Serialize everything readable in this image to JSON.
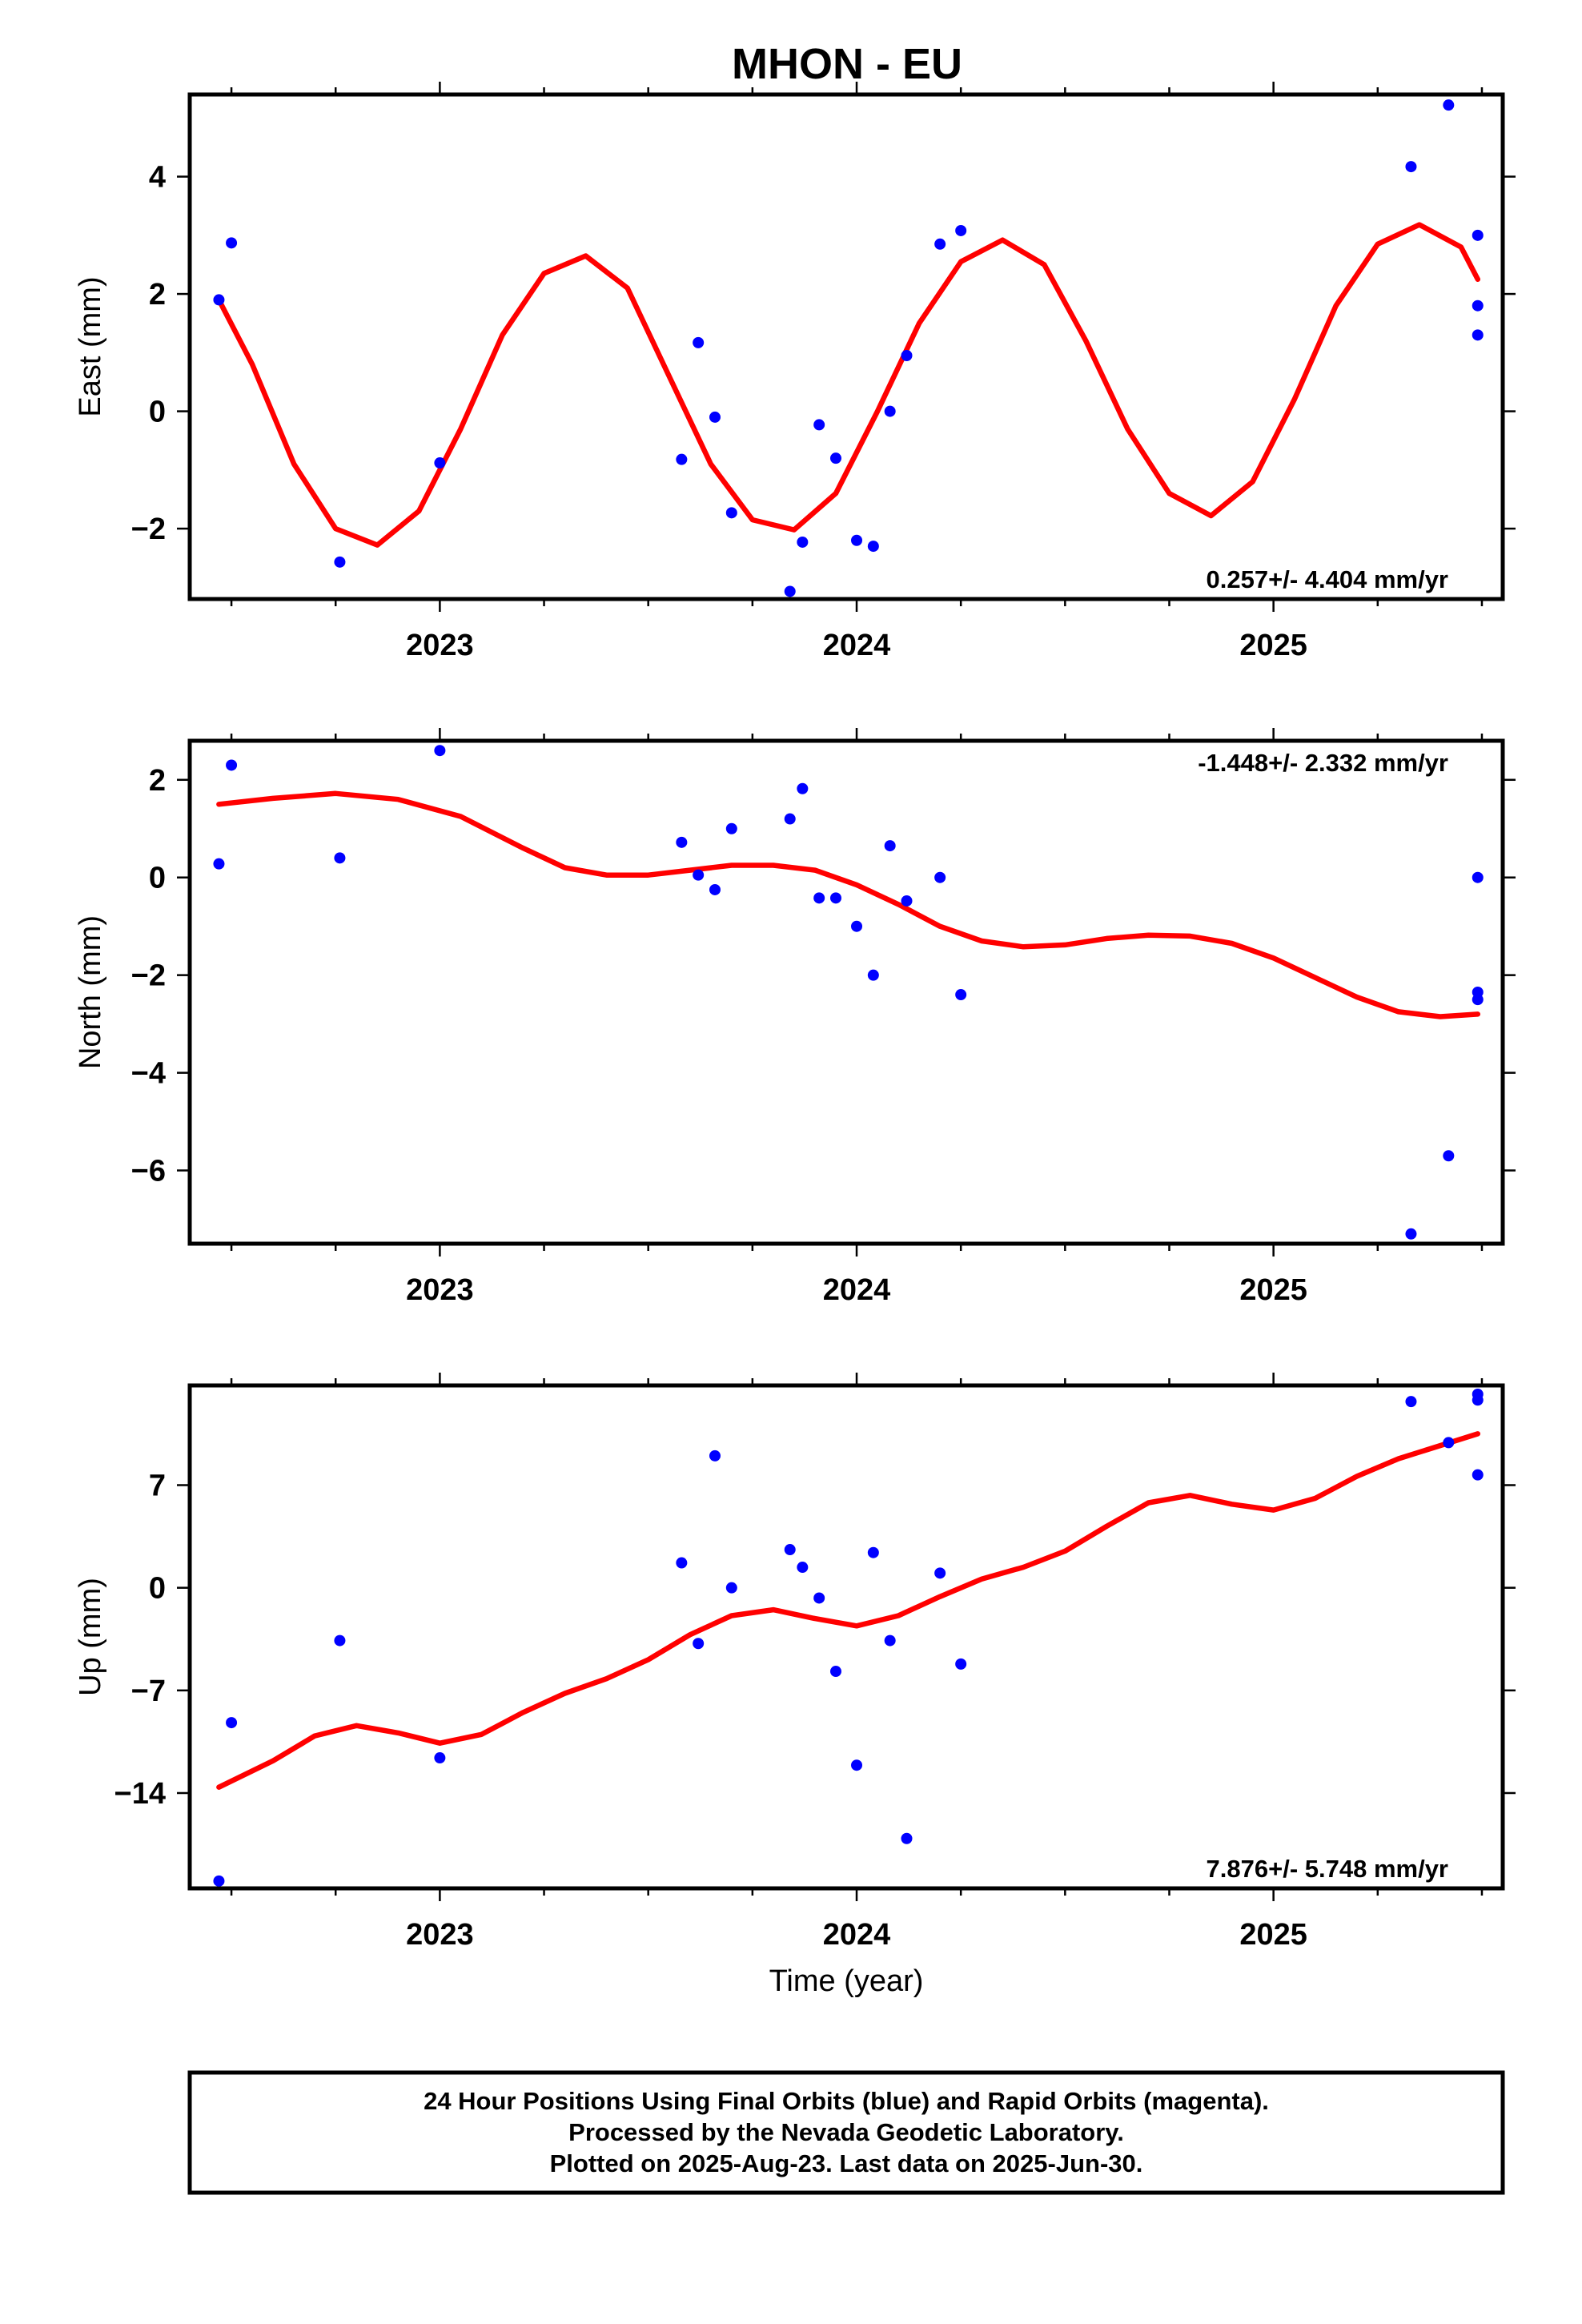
{
  "chart_data": [
    {
      "type": "scatter",
      "title": "MHON - EU",
      "xlabel": "",
      "ylabel": "East (mm)",
      "xlim": [
        2022.4,
        2025.55
      ],
      "ylim": [
        -3.2,
        5.4
      ],
      "xticks": [
        2023,
        2024,
        2025
      ],
      "xtick_labels": [
        "2023",
        "2024",
        "2025"
      ],
      "yticks": [
        -2,
        0,
        2,
        4
      ],
      "ytick_labels": [
        "−2",
        "0",
        "2",
        "4"
      ],
      "rate_label": "0.257+/- 4.404 mm/yr",
      "series": [
        {
          "points": [
            [
              2022.47,
              1.9
            ],
            [
              2022.5,
              2.87
            ],
            [
              2022.76,
              -2.57
            ],
            [
              2023.0,
              -0.88
            ],
            [
              2023.58,
              -0.82
            ],
            [
              2023.62,
              1.17
            ],
            [
              2023.66,
              -0.1
            ],
            [
              2023.7,
              -1.73
            ],
            [
              2023.84,
              -3.07
            ],
            [
              2023.87,
              -2.23
            ],
            [
              2023.91,
              -0.23
            ],
            [
              2023.95,
              -0.8
            ],
            [
              2024.0,
              -2.2
            ],
            [
              2024.04,
              -2.3
            ],
            [
              2024.08,
              0.0
            ],
            [
              2024.12,
              0.95
            ],
            [
              2024.2,
              2.85
            ],
            [
              2024.25,
              3.08
            ],
            [
              2025.33,
              4.17
            ],
            [
              2025.42,
              5.22
            ],
            [
              2025.49,
              3.0
            ],
            [
              2025.49,
              1.8
            ],
            [
              2025.49,
              1.3
            ]
          ]
        },
        {
          "fit": [
            [
              2022.47,
              1.9
            ],
            [
              2022.55,
              0.8
            ],
            [
              2022.65,
              -0.9
            ],
            [
              2022.75,
              -2.0
            ],
            [
              2022.85,
              -2.28
            ],
            [
              2022.95,
              -1.7
            ],
            [
              2023.05,
              -0.3
            ],
            [
              2023.15,
              1.3
            ],
            [
              2023.25,
              2.35
            ],
            [
              2023.35,
              2.65
            ],
            [
              2023.45,
              2.1
            ],
            [
              2023.55,
              0.6
            ],
            [
              2023.65,
              -0.9
            ],
            [
              2023.75,
              -1.85
            ],
            [
              2023.85,
              -2.02
            ],
            [
              2023.95,
              -1.4
            ],
            [
              2024.05,
              0.0
            ],
            [
              2024.15,
              1.5
            ],
            [
              2024.25,
              2.55
            ],
            [
              2024.35,
              2.92
            ],
            [
              2024.45,
              2.5
            ],
            [
              2024.55,
              1.2
            ],
            [
              2024.65,
              -0.3
            ],
            [
              2024.75,
              -1.4
            ],
            [
              2024.85,
              -1.78
            ],
            [
              2024.95,
              -1.2
            ],
            [
              2025.05,
              0.2
            ],
            [
              2025.15,
              1.8
            ],
            [
              2025.25,
              2.85
            ],
            [
              2025.35,
              3.18
            ],
            [
              2025.45,
              2.8
            ],
            [
              2025.49,
              2.25
            ]
          ]
        }
      ]
    },
    {
      "type": "scatter",
      "title": "",
      "xlabel": "",
      "ylabel": "North (mm)",
      "xlim": [
        2022.4,
        2025.55
      ],
      "ylim": [
        -7.5,
        2.8
      ],
      "xticks": [
        2023,
        2024,
        2025
      ],
      "xtick_labels": [
        "2023",
        "2024",
        "2025"
      ],
      "yticks": [
        -6,
        -4,
        -2,
        0,
        2
      ],
      "ytick_labels": [
        "−6",
        "−4",
        "−2",
        "0",
        "2"
      ],
      "rate_label": "-1.448+/- 2.332 mm/yr",
      "series": [
        {
          "points": [
            [
              2022.47,
              0.28
            ],
            [
              2022.5,
              2.3
            ],
            [
              2022.76,
              0.4
            ],
            [
              2023.0,
              2.6
            ],
            [
              2023.58,
              0.72
            ],
            [
              2023.62,
              0.05
            ],
            [
              2023.66,
              -0.25
            ],
            [
              2023.7,
              1.0
            ],
            [
              2023.84,
              1.2
            ],
            [
              2023.87,
              1.82
            ],
            [
              2023.91,
              -0.42
            ],
            [
              2023.95,
              -0.42
            ],
            [
              2024.0,
              -1.0
            ],
            [
              2024.04,
              -2.0
            ],
            [
              2024.08,
              0.65
            ],
            [
              2024.12,
              -0.48
            ],
            [
              2024.2,
              0.0
            ],
            [
              2024.25,
              -2.4
            ],
            [
              2025.33,
              -7.3
            ],
            [
              2025.42,
              -5.7
            ],
            [
              2025.49,
              -2.35
            ],
            [
              2025.49,
              -2.5
            ],
            [
              2025.49,
              0.0
            ]
          ]
        },
        {
          "fit": [
            [
              2022.47,
              1.5
            ],
            [
              2022.6,
              1.62
            ],
            [
              2022.75,
              1.72
            ],
            [
              2022.9,
              1.6
            ],
            [
              2023.05,
              1.25
            ],
            [
              2023.2,
              0.6
            ],
            [
              2023.3,
              0.2
            ],
            [
              2023.4,
              0.05
            ],
            [
              2023.5,
              0.05
            ],
            [
              2023.6,
              0.15
            ],
            [
              2023.7,
              0.25
            ],
            [
              2023.8,
              0.25
            ],
            [
              2023.9,
              0.15
            ],
            [
              2024.0,
              -0.15
            ],
            [
              2024.1,
              -0.55
            ],
            [
              2024.2,
              -1.0
            ],
            [
              2024.3,
              -1.3
            ],
            [
              2024.4,
              -1.42
            ],
            [
              2024.5,
              -1.38
            ],
            [
              2024.6,
              -1.25
            ],
            [
              2024.7,
              -1.18
            ],
            [
              2024.8,
              -1.2
            ],
            [
              2024.9,
              -1.35
            ],
            [
              2025.0,
              -1.65
            ],
            [
              2025.1,
              -2.05
            ],
            [
              2025.2,
              -2.45
            ],
            [
              2025.3,
              -2.75
            ],
            [
              2025.4,
              -2.85
            ],
            [
              2025.49,
              -2.8
            ]
          ]
        }
      ]
    },
    {
      "type": "scatter",
      "title": "",
      "xlabel": "Time (year)",
      "ylabel": "Up (mm)",
      "xlim": [
        2022.4,
        2025.55
      ],
      "ylim": [
        -20.5,
        13.8
      ],
      "xticks": [
        2023,
        2024,
        2025
      ],
      "xtick_labels": [
        "2023",
        "2024",
        "2025"
      ],
      "yticks": [
        -14,
        -7,
        0,
        7
      ],
      "ytick_labels": [
        "−14",
        "−7",
        "0",
        "7"
      ],
      "rate_label": "7.876+/- 5.748 mm/yr",
      "series": [
        {
          "points": [
            [
              2022.47,
              -20.0
            ],
            [
              2022.5,
              -9.2
            ],
            [
              2022.76,
              -3.6
            ],
            [
              2023.0,
              -11.6
            ],
            [
              2023.58,
              1.7
            ],
            [
              2023.62,
              -3.8
            ],
            [
              2023.66,
              9.0
            ],
            [
              2023.7,
              0.0
            ],
            [
              2023.84,
              2.6
            ],
            [
              2023.87,
              1.4
            ],
            [
              2023.91,
              -0.7
            ],
            [
              2023.95,
              -5.7
            ],
            [
              2024.0,
              -12.1
            ],
            [
              2024.04,
              2.4
            ],
            [
              2024.08,
              -3.6
            ],
            [
              2024.12,
              -17.1
            ],
            [
              2024.2,
              1.0
            ],
            [
              2024.25,
              -5.2
            ],
            [
              2025.33,
              12.7
            ],
            [
              2025.42,
              9.9
            ],
            [
              2025.49,
              12.8
            ],
            [
              2025.49,
              13.2
            ],
            [
              2025.49,
              7.7
            ]
          ]
        },
        {
          "fit": [
            [
              2022.47,
              -13.6
            ],
            [
              2022.6,
              -11.8
            ],
            [
              2022.7,
              -10.1
            ],
            [
              2022.8,
              -9.4
            ],
            [
              2022.9,
              -9.9
            ],
            [
              2023.0,
              -10.6
            ],
            [
              2023.1,
              -10.0
            ],
            [
              2023.2,
              -8.5
            ],
            [
              2023.3,
              -7.2
            ],
            [
              2023.4,
              -6.2
            ],
            [
              2023.5,
              -4.9
            ],
            [
              2023.6,
              -3.2
            ],
            [
              2023.7,
              -1.9
            ],
            [
              2023.8,
              -1.5
            ],
            [
              2023.9,
              -2.1
            ],
            [
              2024.0,
              -2.6
            ],
            [
              2024.1,
              -1.9
            ],
            [
              2024.2,
              -0.6
            ],
            [
              2024.3,
              0.6
            ],
            [
              2024.4,
              1.4
            ],
            [
              2024.5,
              2.5
            ],
            [
              2024.6,
              4.2
            ],
            [
              2024.7,
              5.8
            ],
            [
              2024.8,
              6.3
            ],
            [
              2024.9,
              5.7
            ],
            [
              2025.0,
              5.3
            ],
            [
              2025.1,
              6.1
            ],
            [
              2025.2,
              7.6
            ],
            [
              2025.3,
              8.8
            ],
            [
              2025.4,
              9.7
            ],
            [
              2025.49,
              10.5
            ]
          ]
        }
      ]
    }
  ],
  "footer": {
    "line1": "24 Hour Positions Using Final Orbits (blue) and Rapid Orbits (magenta).",
    "line2": "Processed by the Nevada Geodetic Laboratory.",
    "line3": "Plotted on 2025-Aug-23. Last data on 2025-Jun-30."
  },
  "colors": {
    "points": "#0000ff",
    "fit": "#ff0000"
  }
}
